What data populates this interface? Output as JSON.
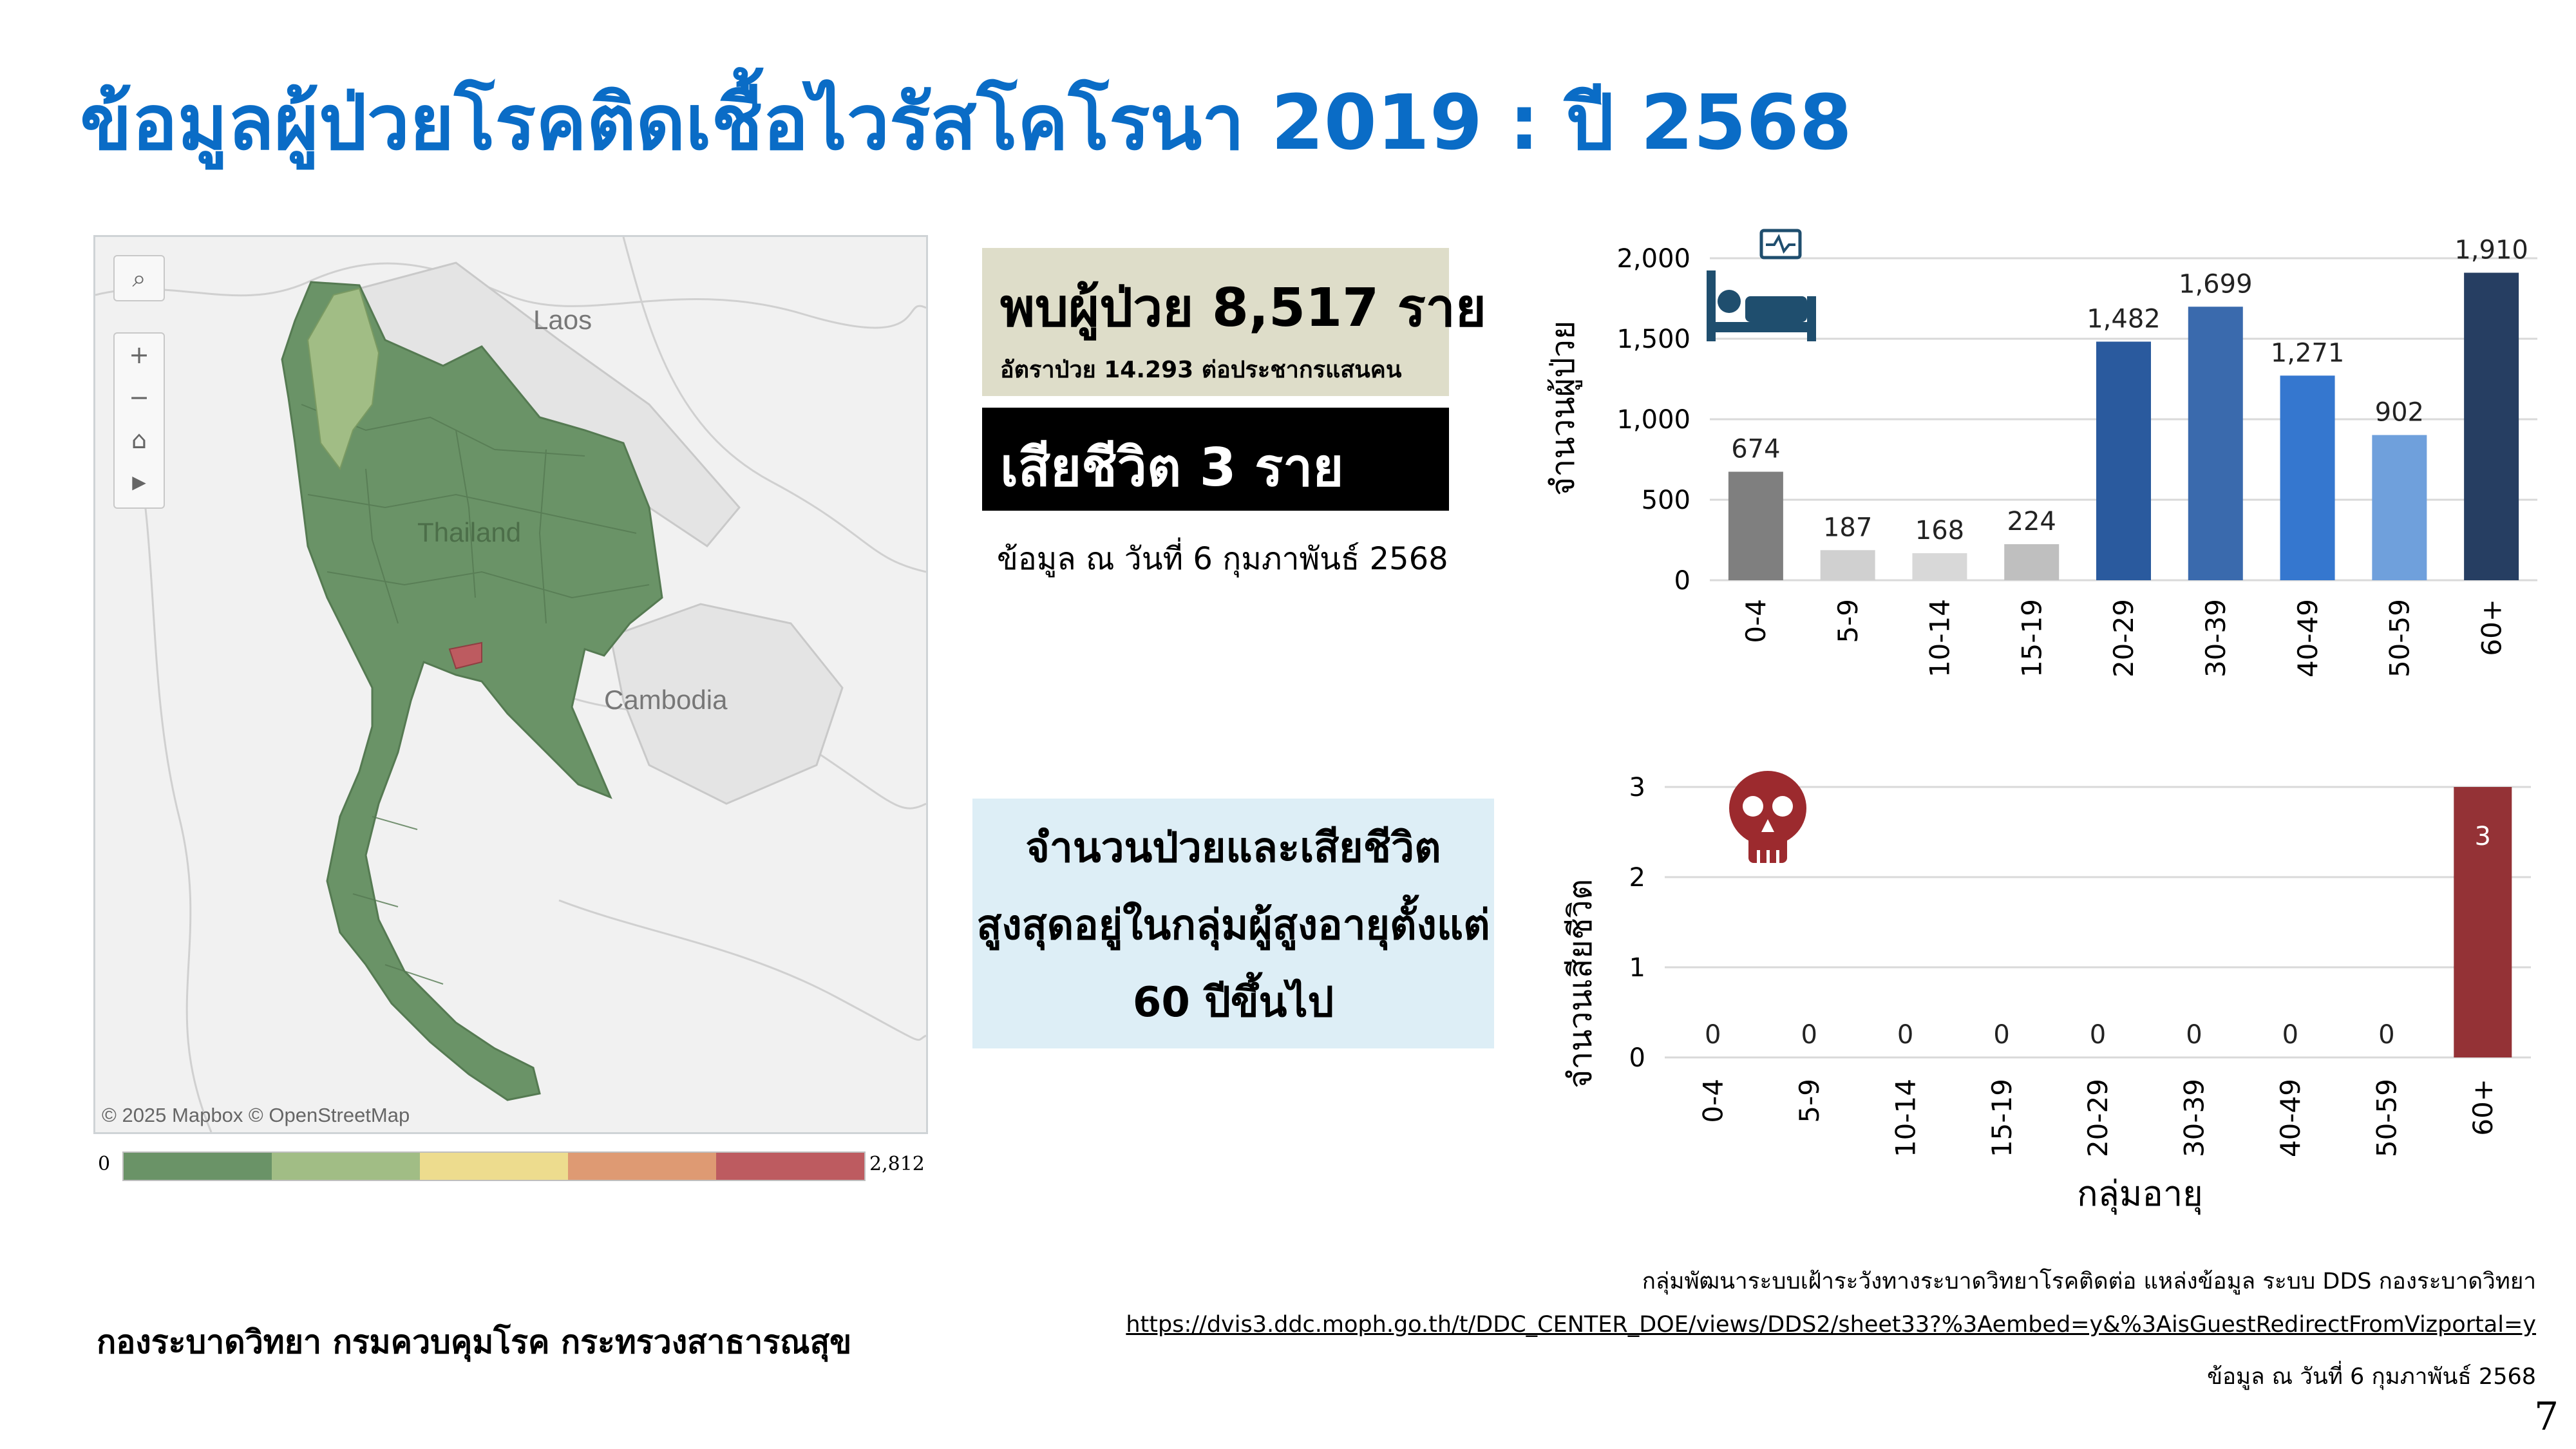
{
  "title": "ข้อมูลผู้ป่วยโรคติดเชื้อไวรัสโคโรนา 2019 : ปี 2568",
  "map": {
    "labels": {
      "laos": "Laos",
      "thailand": "Thailand",
      "cambodia": "Cambodia"
    },
    "attribution": "© 2025 Mapbox  © OpenStreetMap",
    "controls": {
      "zoom_in": "+",
      "zoom_out": "−",
      "home": "⌂",
      "play": "▶"
    },
    "legend": {
      "min": "0",
      "max": "2,812",
      "colors": [
        "#6a9367",
        "#a1bd85",
        "#eddc8e",
        "#de9a73",
        "#bd5b60"
      ]
    }
  },
  "summary": {
    "cases_text": "พบผู้ป่วย 8,517 ราย",
    "rate_text": "อัตราป่วย 14.293 ต่อประชากรแสนคน",
    "deaths_text": "เสียชีวิต 3 ราย",
    "as_of": "ข้อมูล ณ วันที่ 6 กุมภาพันธ์ 2568"
  },
  "note": {
    "lines": [
      "จำนวนป่วยและเสียชีวิต",
      "สูงสุดอยู่ในกลุ่มผู้สูงอายุตั้งแต่",
      "60 ปีขึ้นไป"
    ]
  },
  "chart_data": [
    {
      "type": "bar",
      "categories": [
        "0-4",
        "5-9",
        "10-14",
        "15-19",
        "20-29",
        "30-39",
        "40-49",
        "50-59",
        "60+"
      ],
      "values": [
        674,
        187,
        168,
        224,
        1482,
        1699,
        1271,
        902,
        1910
      ],
      "data_labels": [
        "674",
        "187",
        "168",
        "224",
        "1,482",
        "1,699",
        "1,271",
        "902",
        "1,910"
      ],
      "ylabel": "จำนวนผู้ป่วย",
      "xlabel": "",
      "ylim": [
        0,
        2000
      ],
      "yticks": [
        0,
        500,
        1000,
        1500,
        2000
      ],
      "ytick_labels": [
        "0",
        "500",
        "1,000",
        "1,500",
        "2,000"
      ],
      "colors": [
        "#7f7f7f",
        "#d0d0d0",
        "#d8d8d8",
        "#bfbfbf",
        "#2a5a9e",
        "#3a6aad",
        "#3577cf",
        "#6fa0dc",
        "#263e62"
      ],
      "grid": true
    },
    {
      "type": "bar",
      "categories": [
        "0-4",
        "5-9",
        "10-14",
        "15-19",
        "20-29",
        "30-39",
        "40-49",
        "50-59",
        "60+"
      ],
      "values": [
        0,
        0,
        0,
        0,
        0,
        0,
        0,
        0,
        3
      ],
      "data_labels": [
        "0",
        "0",
        "0",
        "0",
        "0",
        "0",
        "0",
        "0",
        "3"
      ],
      "ylabel": "จำนวนเสียชีวิต",
      "xlabel": "กลุ่มอายุ",
      "ylim": [
        0,
        3
      ],
      "yticks": [
        0,
        1,
        2,
        3
      ],
      "ytick_labels": [
        "0",
        "1",
        "2",
        "3"
      ],
      "colors": [
        "#943236"
      ],
      "grid": true
    }
  ],
  "icons": {
    "cases_chart": "hospital-bed-icon",
    "deaths_chart": "skull-icon",
    "icon_colors": {
      "bed": "#1f4e6e",
      "skull": "#9c2a2e"
    }
  },
  "footer": {
    "org": "กองระบาดวิทยา กรมควบคุมโรค กระทรวงสาธารณสุข",
    "source": "กลุ่มพัฒนาระบบเฝ้าระวังทางระบาดวิทยาโรคติดต่อ แหล่งข้อมูล ระบบ DDS กองระบาดวิทยา",
    "link": "https://dvis3.ddc.moph.go.th/t/DDC_CENTER_DOE/views/DDS2/sheet33?%3Aembed=y&%3AisGuestRedirectFromVizportal=y",
    "as_of": "ข้อมูล ณ วันที่ 6 กุมภาพันธ์ 2568",
    "page": "7"
  }
}
